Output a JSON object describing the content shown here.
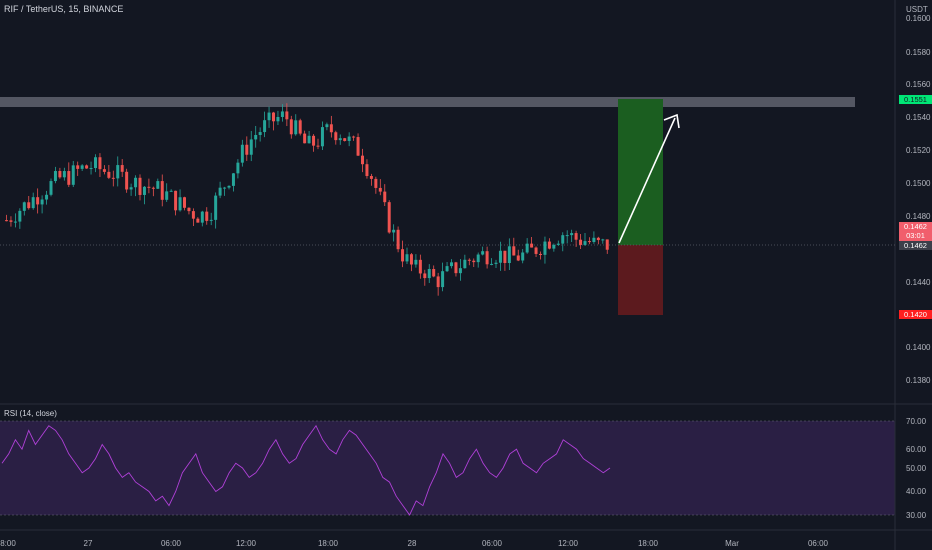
{
  "header": {
    "symbol": "RIF / TetherUS, 15, BINANCE",
    "currency": "USDT"
  },
  "rsi": {
    "legend": "RSI (14, close)",
    "levels": [
      "70.00",
      "60.00",
      "50.00",
      "40.00",
      "30.00"
    ]
  },
  "price_axis": {
    "labels": [
      "0.1600",
      "0.1580",
      "0.1560",
      "0.1540",
      "0.1520",
      "0.1500",
      "0.1480",
      "0.1440",
      "0.1420",
      "0.1400",
      "0.1380"
    ]
  },
  "tags": {
    "resistance": "0.1551",
    "stop": "0.1420",
    "last_price": "0.1462",
    "countdown": "03:01",
    "crosshair": "0.1462"
  },
  "time_axis": {
    "labels": [
      "8:00",
      "27",
      "06:00",
      "12:00",
      "18:00",
      "28",
      "06:00",
      "12:00",
      "18:00",
      "Mar",
      "06:00"
    ]
  },
  "colors": {
    "background": "#131722",
    "up": "#26a69a",
    "down": "#ef5350",
    "profit_zone": "#1b5e20",
    "loss_zone": "#5c1a1e",
    "rsi_line": "#b040d8",
    "rsi_band": "#2a1f44"
  },
  "chart_data": {
    "type": "candlestick",
    "ylim": [
      0.137,
      0.161
    ],
    "resistance": 0.1551,
    "long_position": {
      "entry": 0.1462,
      "target": 0.1551,
      "stop": 0.142
    },
    "trend_path": [
      0.1478,
      0.1484,
      0.1489,
      0.1495,
      0.15,
      0.1505,
      0.1507,
      0.1511,
      0.1513,
      0.151,
      0.1508,
      0.1505,
      0.1502,
      0.15,
      0.1498,
      0.1494,
      0.1489,
      0.1484,
      0.1481,
      0.1484,
      0.1497,
      0.1509,
      0.1521,
      0.1532,
      0.1538,
      0.1543,
      0.1545,
      0.1535,
      0.1525,
      0.1529,
      0.1536,
      0.1535,
      0.1528,
      0.1522,
      0.1507,
      0.1488,
      0.147,
      0.1455,
      0.1446,
      0.1446,
      0.1439,
      0.1443,
      0.1448,
      0.1452,
      0.1455,
      0.1457,
      0.1456,
      0.1454,
      0.1455,
      0.1458,
      0.1463,
      0.1467,
      0.147,
      0.1466,
      0.1465,
      0.1462,
      0.1462
    ],
    "rsi_values": [
      52,
      56,
      62,
      58,
      66,
      60,
      64,
      68,
      66,
      62,
      56,
      52,
      48,
      50,
      54,
      60,
      56,
      50,
      46,
      48,
      44,
      42,
      40,
      36,
      38,
      34,
      40,
      48,
      52,
      56,
      48,
      44,
      40,
      42,
      48,
      52,
      50,
      46,
      48,
      52,
      58,
      62,
      56,
      52,
      54,
      60,
      64,
      68,
      62,
      58,
      56,
      62,
      66,
      64,
      60,
      56,
      52,
      46,
      44,
      38,
      34,
      30,
      36,
      34,
      42,
      48,
      56,
      52,
      46,
      48,
      54,
      58,
      52,
      48,
      46,
      50,
      56,
      58,
      52,
      50,
      48,
      52,
      54,
      56,
      62,
      60,
      58,
      54,
      52,
      50,
      48,
      50
    ]
  }
}
